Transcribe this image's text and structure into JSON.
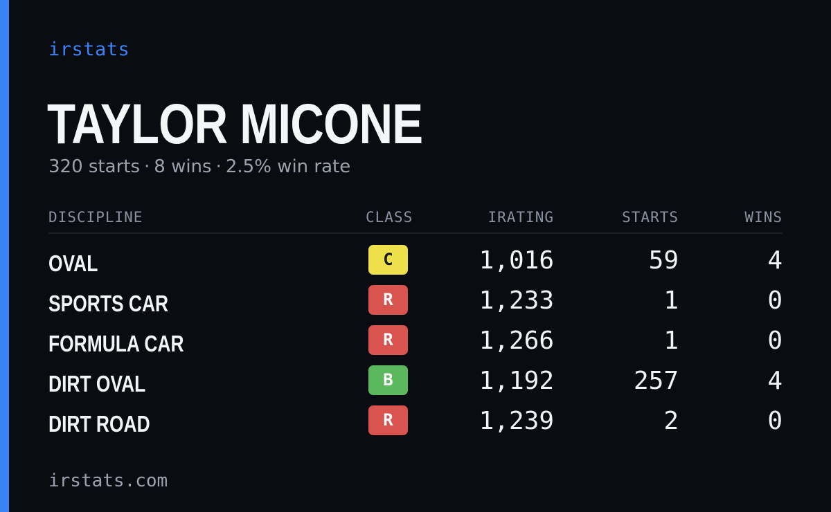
{
  "brand": "irstats",
  "driver": {
    "name": "TAYLOR MICONE",
    "summary": {
      "starts": "320 starts",
      "wins": "8 wins",
      "win_rate": "2.5% win rate",
      "separator": "·"
    }
  },
  "table": {
    "headers": {
      "discipline": "DISCIPLINE",
      "class": "CLASS",
      "irating": "IRATING",
      "starts": "STARTS",
      "wins": "WINS"
    },
    "rows": [
      {
        "discipline": "OVAL",
        "class": "C",
        "class_color": "#ede04a",
        "class_text_color": "#1a1a1a",
        "irating": "1,016",
        "starts": "59",
        "wins": "4"
      },
      {
        "discipline": "SPORTS CAR",
        "class": "R",
        "class_color": "#d9534f",
        "class_text_color": "#ffffff",
        "irating": "1,233",
        "starts": "1",
        "wins": "0"
      },
      {
        "discipline": "FORMULA CAR",
        "class": "R",
        "class_color": "#d9534f",
        "class_text_color": "#ffffff",
        "irating": "1,266",
        "starts": "1",
        "wins": "0"
      },
      {
        "discipline": "DIRT OVAL",
        "class": "B",
        "class_color": "#5cb85c",
        "class_text_color": "#ffffff",
        "irating": "1,192",
        "starts": "257",
        "wins": "4"
      },
      {
        "discipline": "DIRT ROAD",
        "class": "R",
        "class_color": "#d9534f",
        "class_text_color": "#ffffff",
        "irating": "1,239",
        "starts": "2",
        "wins": "0"
      }
    ]
  },
  "footer": "irstats.com",
  "colors": {
    "background": "#0a0c12",
    "accent": "#3b82f6",
    "muted": "#9ca3af"
  }
}
